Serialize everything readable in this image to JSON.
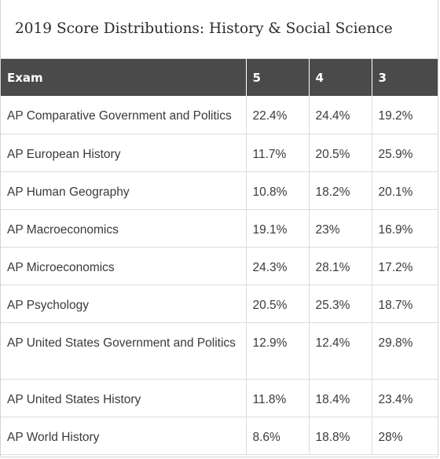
{
  "title": "2019 Score Distributions: History & Social Science",
  "table": {
    "headers": [
      "Exam",
      "5",
      "4",
      "3"
    ],
    "rows": [
      {
        "exam": "AP Comparative Government and Politics",
        "s5": "22.4%",
        "s4": "24.4%",
        "s3": "19.2%"
      },
      {
        "exam": "AP European History",
        "s5": "11.7%",
        "s4": "20.5%",
        "s3": "25.9%"
      },
      {
        "exam": "AP Human Geography",
        "s5": "10.8%",
        "s4": "18.2%",
        "s3": "20.1%"
      },
      {
        "exam": "AP Macroeconomics",
        "s5": "19.1%",
        "s4": "23%",
        "s3": "16.9%"
      },
      {
        "exam": "AP Microeconomics",
        "s5": "24.3%",
        "s4": "28.1%",
        "s3": "17.2%"
      },
      {
        "exam": "AP Psychology",
        "s5": "20.5%",
        "s4": "25.3%",
        "s3": "18.7%"
      },
      {
        "exam": "AP United States Government and Politics",
        "s5": "12.9%",
        "s4": "12.4%",
        "s3": "29.8%"
      },
      {
        "exam": "AP United States History",
        "s5": "11.8%",
        "s4": "18.4%",
        "s3": "23.4%"
      },
      {
        "exam": "AP World History",
        "s5": "8.6%",
        "s4": "18.8%",
        "s3": "28%"
      }
    ]
  }
}
